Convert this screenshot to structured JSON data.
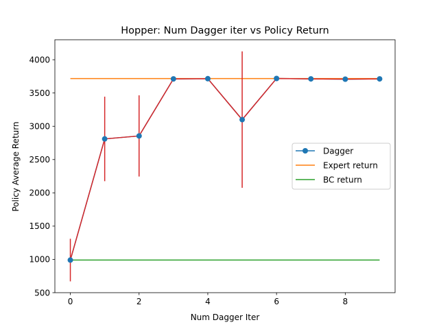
{
  "chart_data": {
    "type": "line",
    "title": "Hopper: Num Dagger iter vs Policy Return",
    "xlabel": "Num Dagger Iter",
    "ylabel": "Policy Average Return",
    "xlim": [
      -0.45,
      9.45
    ],
    "ylim": [
      500,
      4300
    ],
    "xticks": [
      0,
      2,
      4,
      6,
      8
    ],
    "yticks": [
      500,
      1000,
      1500,
      2000,
      2500,
      3000,
      3500,
      4000
    ],
    "grid": false,
    "legend_position": "center-right",
    "series": [
      {
        "name": "Dagger",
        "color": "#1f77b4",
        "marker": "circle",
        "x": [
          0,
          1,
          2,
          3,
          4,
          5,
          6,
          7,
          8,
          9
        ],
        "y": [
          990,
          2810,
          2855,
          3712,
          3715,
          3100,
          3718,
          3712,
          3708,
          3712
        ],
        "error": [
          320,
          635,
          610,
          8,
          8,
          1025,
          8,
          8,
          8,
          8
        ],
        "error_color": "#d62728"
      },
      {
        "name": "Expert return",
        "color": "#ff7f0e",
        "x": [
          0,
          9
        ],
        "y": [
          3717,
          3717
        ]
      },
      {
        "name": "BC return",
        "color": "#2ca02c",
        "x": [
          0,
          9
        ],
        "y": [
          990,
          990
        ]
      }
    ]
  }
}
